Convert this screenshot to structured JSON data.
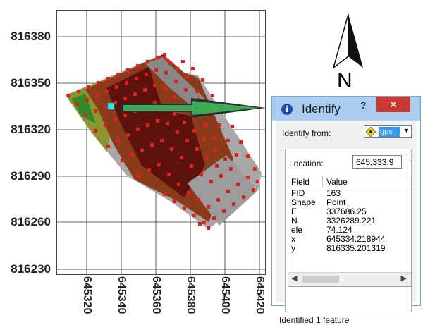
{
  "map": {
    "y_ticks": [
      "816380",
      "816350",
      "816320",
      "816290",
      "816260",
      "816230"
    ],
    "x_ticks": [
      "645320",
      "645340",
      "645360",
      "645380",
      "645400",
      "645420"
    ],
    "north_label": "N",
    "colors": {
      "dark_red": "#6a1410",
      "brown": "#8b3a1a",
      "olive": "#7a8a2a",
      "green": "#2f8a2a",
      "gray": "#9a9a9a",
      "point": "#e0201c",
      "arrow": "#3daa55",
      "selected": "#33e6e6"
    }
  },
  "identify": {
    "title": "Identify",
    "help": "?",
    "close": "✕",
    "from_label": "Identify from:",
    "layer": "gps",
    "location_label": "Location:",
    "location_value": "645,333.9",
    "header_field": "Field",
    "header_value": "Value",
    "rows": [
      {
        "field": "FID",
        "value": "163"
      },
      {
        "field": "Shape",
        "value": "Point"
      },
      {
        "field": "E",
        "value": "337686.25"
      },
      {
        "field": "N",
        "value": "3326289.221"
      },
      {
        "field": "ele",
        "value": "74.124"
      },
      {
        "field": "x",
        "value": "645334.218944"
      },
      {
        "field": "y",
        "value": "816335.201319"
      }
    ],
    "status": "Identified 1 feature"
  }
}
